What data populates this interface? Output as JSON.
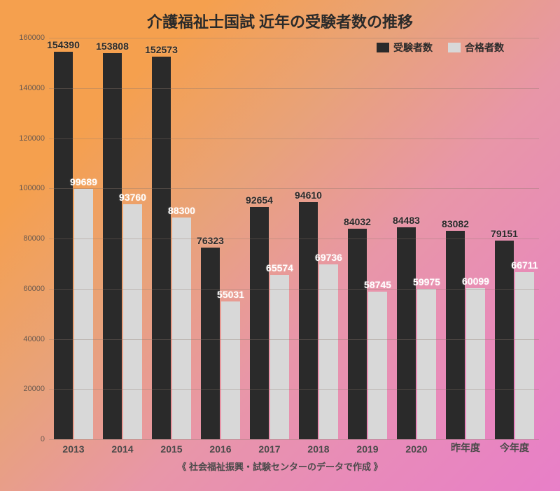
{
  "title": {
    "text": "介護福祉士国試 近年の受験者数の推移",
    "color": "#2a2a2a",
    "fontsize": 22
  },
  "legend": {
    "items": [
      {
        "label": "受験者数",
        "color": "#2a2a2a"
      },
      {
        "label": "合格者数",
        "color": "#d8d8d8"
      }
    ],
    "label_color": "#2a2a2a",
    "label_fontsize": 14
  },
  "chart": {
    "type": "bar",
    "ylim_max": 160000,
    "ytick_step": 20000,
    "yticks": [
      0,
      20000,
      40000,
      60000,
      80000,
      100000,
      120000,
      140000,
      160000
    ],
    "ytick_color": "#6a5a50",
    "ytick_fontsize": 11,
    "grid_color": "rgba(140,120,110,0.35)",
    "categories": [
      "2013",
      "2014",
      "2015",
      "2016",
      "2017",
      "2018",
      "2019",
      "2020",
      "昨年度",
      "今年度"
    ],
    "xtick_color": "#4a4a4a",
    "xtick_fontsize": 14,
    "series": [
      {
        "name": "受験者数",
        "color": "#2a2a2a",
        "label_color": "#2a2a2a",
        "values": [
          154390,
          153808,
          152573,
          76323,
          92654,
          94610,
          84032,
          84483,
          83082,
          79151
        ]
      },
      {
        "name": "合格者数",
        "color": "#d8d8d8",
        "label_color": "#ffffff",
        "values": [
          99689,
          93760,
          88300,
          55031,
          65574,
          69736,
          58745,
          59975,
          60099,
          66711
        ]
      }
    ],
    "value_label_fontsize": 14
  },
  "footer": {
    "text": "《 社会福祉振興・試験センターのデータで作成 》",
    "color": "#4a4a4a",
    "fontsize": 13
  }
}
